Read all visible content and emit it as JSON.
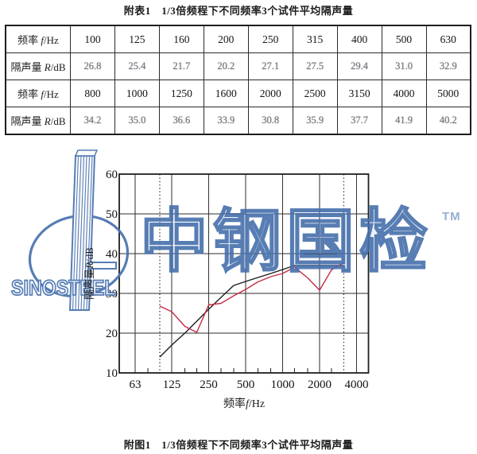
{
  "page": {
    "table_title": "附表1　1/3倍频程下不同频率3个试件平均隔声量",
    "figure_caption": "附图1　1/3倍频程下不同频率3个试件平均隔声量"
  },
  "table": {
    "rows": [
      {
        "style": "freq",
        "label": {
          "prefix": "频率 ",
          "sym": "f",
          "unit": "/Hz"
        },
        "values": [
          "100",
          "125",
          "160",
          "200",
          "250",
          "315",
          "400",
          "500",
          "630"
        ]
      },
      {
        "style": "faded",
        "label": {
          "prefix": "隔声量 ",
          "sym": "R",
          "unit": "/dB"
        },
        "values": [
          "26.8",
          "25.4",
          "21.7",
          "20.2",
          "27.1",
          "27.5",
          "29.4",
          "31.0",
          "32.9"
        ]
      },
      {
        "style": "freq",
        "label": {
          "prefix": "频率 ",
          "sym": "f",
          "unit": "/Hz"
        },
        "values": [
          "800",
          "1000",
          "1250",
          "1600",
          "2000",
          "2500",
          "3150",
          "4000",
          "5000"
        ]
      },
      {
        "style": "faded",
        "label": {
          "prefix": "隔声量 ",
          "sym": "R",
          "unit": "/dB"
        },
        "values": [
          "34.2",
          "35.0",
          "36.6",
          "33.9",
          "30.8",
          "35.9",
          "37.7",
          "41.9",
          "40.2"
        ]
      }
    ]
  },
  "chart_data": {
    "type": "line",
    "x_scale": "log2",
    "xlabel": {
      "prefix": "频率",
      "sym": "f",
      "unit": "/Hz"
    },
    "ylabel": {
      "prefix": "隔声量",
      "sym": "R",
      "unit": "/dB"
    },
    "ylim": [
      10,
      60
    ],
    "xlim": [
      47,
      5000
    ],
    "grid": true,
    "legend": "none",
    "y_ticks": [
      10,
      20,
      30,
      40,
      50,
      60
    ],
    "x_major_ticks": [
      63,
      125,
      250,
      500,
      1000,
      2000,
      4000
    ],
    "x_minor_ticks": [
      80,
      160,
      200,
      315,
      400,
      630,
      800,
      1250,
      1600,
      2500
    ],
    "dotted_vlines": [
      100,
      3150
    ],
    "series": [
      {
        "name": "measured-average-R",
        "color": "#c42c47",
        "x": [
          100,
          125,
          160,
          200,
          250,
          315,
          400,
          500,
          630,
          800,
          1000,
          1250,
          1600,
          2000,
          2500,
          3150
        ],
        "values": [
          26.8,
          25.4,
          21.7,
          20.2,
          27.1,
          27.5,
          29.4,
          31.0,
          32.9,
          34.2,
          35.0,
          36.6,
          33.9,
          30.8,
          35.9,
          37.7
        ]
      },
      {
        "name": "reference-curve",
        "color": "#1c1c1c",
        "x": [
          100,
          125,
          160,
          200,
          250,
          315,
          400,
          500,
          630,
          800,
          1000,
          1250,
          1600,
          2000,
          2500,
          3150
        ],
        "values": [
          14,
          17,
          20,
          23,
          26,
          29,
          32,
          33,
          34,
          35,
          36,
          37,
          37,
          37,
          37,
          37
        ]
      }
    ]
  },
  "watermark": {
    "brand_cn": "中钢国检",
    "tm": "TM",
    "brand_en": "SINOSTEEL",
    "color": "#4d76b0"
  }
}
